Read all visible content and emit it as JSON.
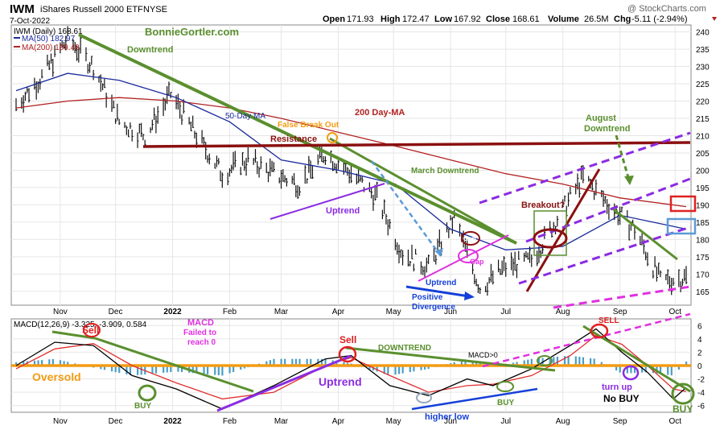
{
  "header": {
    "symbol": "IWM",
    "name": "iShares Russell 2000 ETF",
    "exchange": "NYSE",
    "date": "7-Oct-2022",
    "copyright": "@ StockCharts.com",
    "open_label": "Open",
    "open": "171.93",
    "high_label": "High",
    "high": "172.47",
    "low_label": "Low",
    "low": "167.92",
    "close_label": "Close",
    "close": "168.61",
    "volume_label": "Volume",
    "volume": "26.5M",
    "chg_label": "Chg",
    "chg": "-5.11 (-2.94%)"
  },
  "legend": {
    "price": "IWM (Daily) 168.61",
    "ma50": "MA(50) 182.97",
    "ma200": "MA(200) 189.48",
    "macd": "MACD(12,26,9) -3.325, -3.909, 0.584"
  },
  "colors": {
    "price": "#111111",
    "ma50": "#1a2a9c",
    "ma200": "#b22222",
    "green": "#5a8f2e",
    "purple": "#8b2be2",
    "magenta": "#e030e0",
    "maroon": "#8b1010",
    "orange": "#f39c12",
    "blue": "#1540d8",
    "lightblue": "#5b9bd5",
    "hist": "#4a9ec8",
    "red": "#e02020"
  },
  "chart_data": [
    {
      "type": "line",
      "title": "IWM (Daily) 168.61",
      "x_ticks": [
        "Nov",
        "Dec",
        "2022",
        "Feb",
        "Mar",
        "Apr",
        "May",
        "Jun",
        "Jul",
        "Aug",
        "Sep",
        "Oct"
      ],
      "y_ticks": [
        165,
        170,
        175,
        180,
        185,
        190,
        195,
        200,
        205,
        210,
        215,
        220,
        225,
        230,
        235,
        240
      ],
      "ylim": [
        161,
        242
      ],
      "grid": true,
      "legend_position": "top-left",
      "series": [
        {
          "name": "IWM",
          "x": [
            "2021-10-08",
            "2021-10-22",
            "2021-11-05",
            "2021-11-19",
            "2021-12-03",
            "2021-12-17",
            "2021-12-31",
            "2022-01-14",
            "2022-01-28",
            "2022-02-11",
            "2022-02-25",
            "2022-03-11",
            "2022-03-25",
            "2022-04-08",
            "2022-04-22",
            "2022-05-06",
            "2022-05-20",
            "2022-06-03",
            "2022-06-17",
            "2022-07-01",
            "2022-07-15",
            "2022-07-29",
            "2022-08-12",
            "2022-08-26",
            "2022-09-09",
            "2022-09-23",
            "2022-10-07"
          ],
          "values": [
            219,
            227,
            238,
            230,
            214,
            210,
            222,
            210,
            199,
            203,
            199,
            196,
            205,
            199,
            192,
            176,
            172,
            186,
            166,
            172,
            174,
            186,
            198,
            190,
            183,
            168,
            169
          ]
        },
        {
          "name": "MA(50) 182.97",
          "x": [
            "2021-10-08",
            "2021-11-05",
            "2021-12-03",
            "2022-01-03",
            "2022-02-01",
            "2022-03-01",
            "2022-04-01",
            "2022-05-02",
            "2022-06-01",
            "2022-07-01",
            "2022-08-01",
            "2022-09-01",
            "2022-10-07"
          ],
          "values": [
            223,
            228,
            226,
            221,
            214,
            203,
            200,
            196,
            183,
            177,
            178,
            187,
            183
          ]
        },
        {
          "name": "MA(200) 189.48",
          "x": [
            "2021-10-08",
            "2021-11-05",
            "2021-12-03",
            "2022-01-03",
            "2022-02-01",
            "2022-03-01",
            "2022-04-01",
            "2022-05-02",
            "2022-06-01",
            "2022-07-01",
            "2022-08-01",
            "2022-09-01",
            "2022-10-07"
          ],
          "values": [
            218,
            220,
            221,
            220,
            218,
            215,
            211,
            207,
            203,
            199,
            196,
            192,
            189.5
          ]
        }
      ],
      "annotations": [
        "BonnieGortler.com",
        "Downtrend",
        "50-Day MA",
        "False Break Out",
        "Resistance",
        "200 Day-MA",
        "March Downtrend",
        "Uptrend",
        "Uptrend",
        "Positive",
        "Divergence",
        "Gap",
        "Gap",
        "Breakout?",
        "August",
        "Downtrend"
      ]
    },
    {
      "type": "line",
      "title": "MACD(12,26,9) -3.325, -3.909, 0.584",
      "x_ticks": [
        "Nov",
        "Dec",
        "2022",
        "Feb",
        "Mar",
        "Apr",
        "May",
        "Jun",
        "Jul",
        "Aug",
        "Sep",
        "Oct"
      ],
      "y_ticks": [
        -6,
        -4,
        -2,
        0,
        2,
        4,
        6
      ],
      "ylim": [
        -7,
        7
      ],
      "series": [
        {
          "name": "MACD",
          "x": [
            "2021-10-08",
            "2021-10-29",
            "2021-11-19",
            "2021-12-10",
            "2022-01-03",
            "2022-01-28",
            "2022-02-25",
            "2022-03-25",
            "2022-04-08",
            "2022-04-29",
            "2022-05-20",
            "2022-06-10",
            "2022-06-24",
            "2022-07-15",
            "2022-08-05",
            "2022-08-19",
            "2022-09-02",
            "2022-09-16",
            "2022-09-30",
            "2022-10-07"
          ],
          "values": [
            0,
            3.5,
            3.0,
            -1.5,
            -3.5,
            -6.5,
            -3.0,
            1.0,
            1.5,
            -3.0,
            -4.5,
            -2.0,
            -3.0,
            -0.5,
            3.0,
            5.5,
            2.0,
            -1.0,
            -5.0,
            -3.3
          ]
        },
        {
          "name": "Signal",
          "x": [
            "2021-10-08",
            "2021-10-29",
            "2021-11-19",
            "2021-12-10",
            "2022-01-03",
            "2022-01-28",
            "2022-02-25",
            "2022-03-25",
            "2022-04-08",
            "2022-04-29",
            "2022-05-20",
            "2022-06-10",
            "2022-06-24",
            "2022-07-15",
            "2022-08-05",
            "2022-08-19",
            "2022-09-02",
            "2022-09-16",
            "2022-09-30",
            "2022-10-07"
          ],
          "values": [
            -0.5,
            2.5,
            3.3,
            0.0,
            -2.6,
            -5.0,
            -4.0,
            0.0,
            1.2,
            -1.5,
            -4.0,
            -3.0,
            -2.8,
            -1.5,
            1.5,
            4.5,
            3.2,
            0.0,
            -3.5,
            -3.9
          ]
        }
      ],
      "annotations": [
        "Sell",
        "MACD",
        "Failed to",
        "reach 0",
        "Oversold",
        "BUY",
        "Sell",
        "DOWNTREND",
        "Uptrend",
        "MACD>0",
        "higher low",
        "BUY",
        "SELL",
        "turn up",
        "No BUY",
        "BUY"
      ]
    }
  ],
  "labels": {
    "site": "BonnieGortler.com",
    "downtrend": "Downtrend",
    "ma50": "50-Day MA",
    "false_break": "False Break Out",
    "resistance": "Resistance",
    "ma200": "200 Day-MA",
    "march_downtrend": "March Downtrend",
    "uptrend1": "Uptrend",
    "uptrend2": "Uptrend",
    "positive": "Positive",
    "divergence": "Divergence",
    "gap1": "Gap",
    "gap2": "Gap",
    "breakout": "Breakout?",
    "august": "August",
    "aug_downtrend": "Downtrend",
    "sell1": "Sell",
    "macd_failed1": "MACD",
    "macd_failed2": "Failed to",
    "macd_failed3": "reach 0",
    "oversold": "Oversold",
    "buy1": "BUY",
    "sell2": "Sell",
    "downtrend_caps": "DOWNTREND",
    "uptrend3": "Uptrend",
    "macd_gt0": "MACD>0",
    "higher_low": "higher low",
    "buy2": "BUY",
    "sell3": "SELL",
    "turn_up": "turn up",
    "no_buy": "No BUY",
    "buy3": "BUY"
  }
}
